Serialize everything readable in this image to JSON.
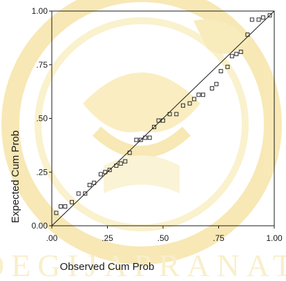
{
  "chart_data": {
    "type": "scatter",
    "title": "",
    "xlabel": "Observed Cum Prob",
    "ylabel": "Expected Cum Prob",
    "xlim": [
      0,
      1
    ],
    "ylim": [
      0,
      1
    ],
    "x_ticks": [
      ".00",
      ".25",
      ".50",
      ".75",
      "1.00"
    ],
    "y_ticks": [
      "0.00",
      ".25",
      ".50",
      ".75",
      "1.00"
    ],
    "grid": false,
    "reference_line": {
      "from": [
        0,
        0
      ],
      "to": [
        1,
        1
      ]
    },
    "marker": "hollow-square",
    "series": [
      {
        "points": [
          [
            0.02,
            0.06
          ],
          [
            0.04,
            0.09
          ],
          [
            0.06,
            0.09
          ],
          [
            0.09,
            0.11
          ],
          [
            0.12,
            0.15
          ],
          [
            0.15,
            0.15
          ],
          [
            0.17,
            0.19
          ],
          [
            0.19,
            0.2
          ],
          [
            0.22,
            0.24
          ],
          [
            0.24,
            0.25
          ],
          [
            0.26,
            0.26
          ],
          [
            0.29,
            0.28
          ],
          [
            0.31,
            0.29
          ],
          [
            0.33,
            0.3
          ],
          [
            0.35,
            0.34
          ],
          [
            0.38,
            0.4
          ],
          [
            0.4,
            0.4
          ],
          [
            0.42,
            0.41
          ],
          [
            0.44,
            0.41
          ],
          [
            0.46,
            0.46
          ],
          [
            0.48,
            0.49
          ],
          [
            0.5,
            0.49
          ],
          [
            0.53,
            0.52
          ],
          [
            0.56,
            0.52
          ],
          [
            0.59,
            0.56
          ],
          [
            0.62,
            0.57
          ],
          [
            0.64,
            0.59
          ],
          [
            0.66,
            0.61
          ],
          [
            0.68,
            0.61
          ],
          [
            0.72,
            0.64
          ],
          [
            0.74,
            0.66
          ],
          [
            0.76,
            0.72
          ],
          [
            0.79,
            0.74
          ],
          [
            0.81,
            0.79
          ],
          [
            0.83,
            0.8
          ],
          [
            0.85,
            0.81
          ],
          [
            0.88,
            0.89
          ],
          [
            0.9,
            0.96
          ],
          [
            0.93,
            0.96
          ],
          [
            0.95,
            0.97
          ],
          [
            0.98,
            0.98
          ]
        ]
      }
    ]
  },
  "colors": {
    "marker_stroke": "#2a2a2a",
    "reference_line": "#1a1a1a",
    "frame": "#1a1a1a",
    "text": "#1a1a1a",
    "watermark": "#f4e3a1"
  },
  "watermark": {
    "description_icon": "university-seal-watermark-icon",
    "text": "SOEGIJAPRANATA"
  }
}
